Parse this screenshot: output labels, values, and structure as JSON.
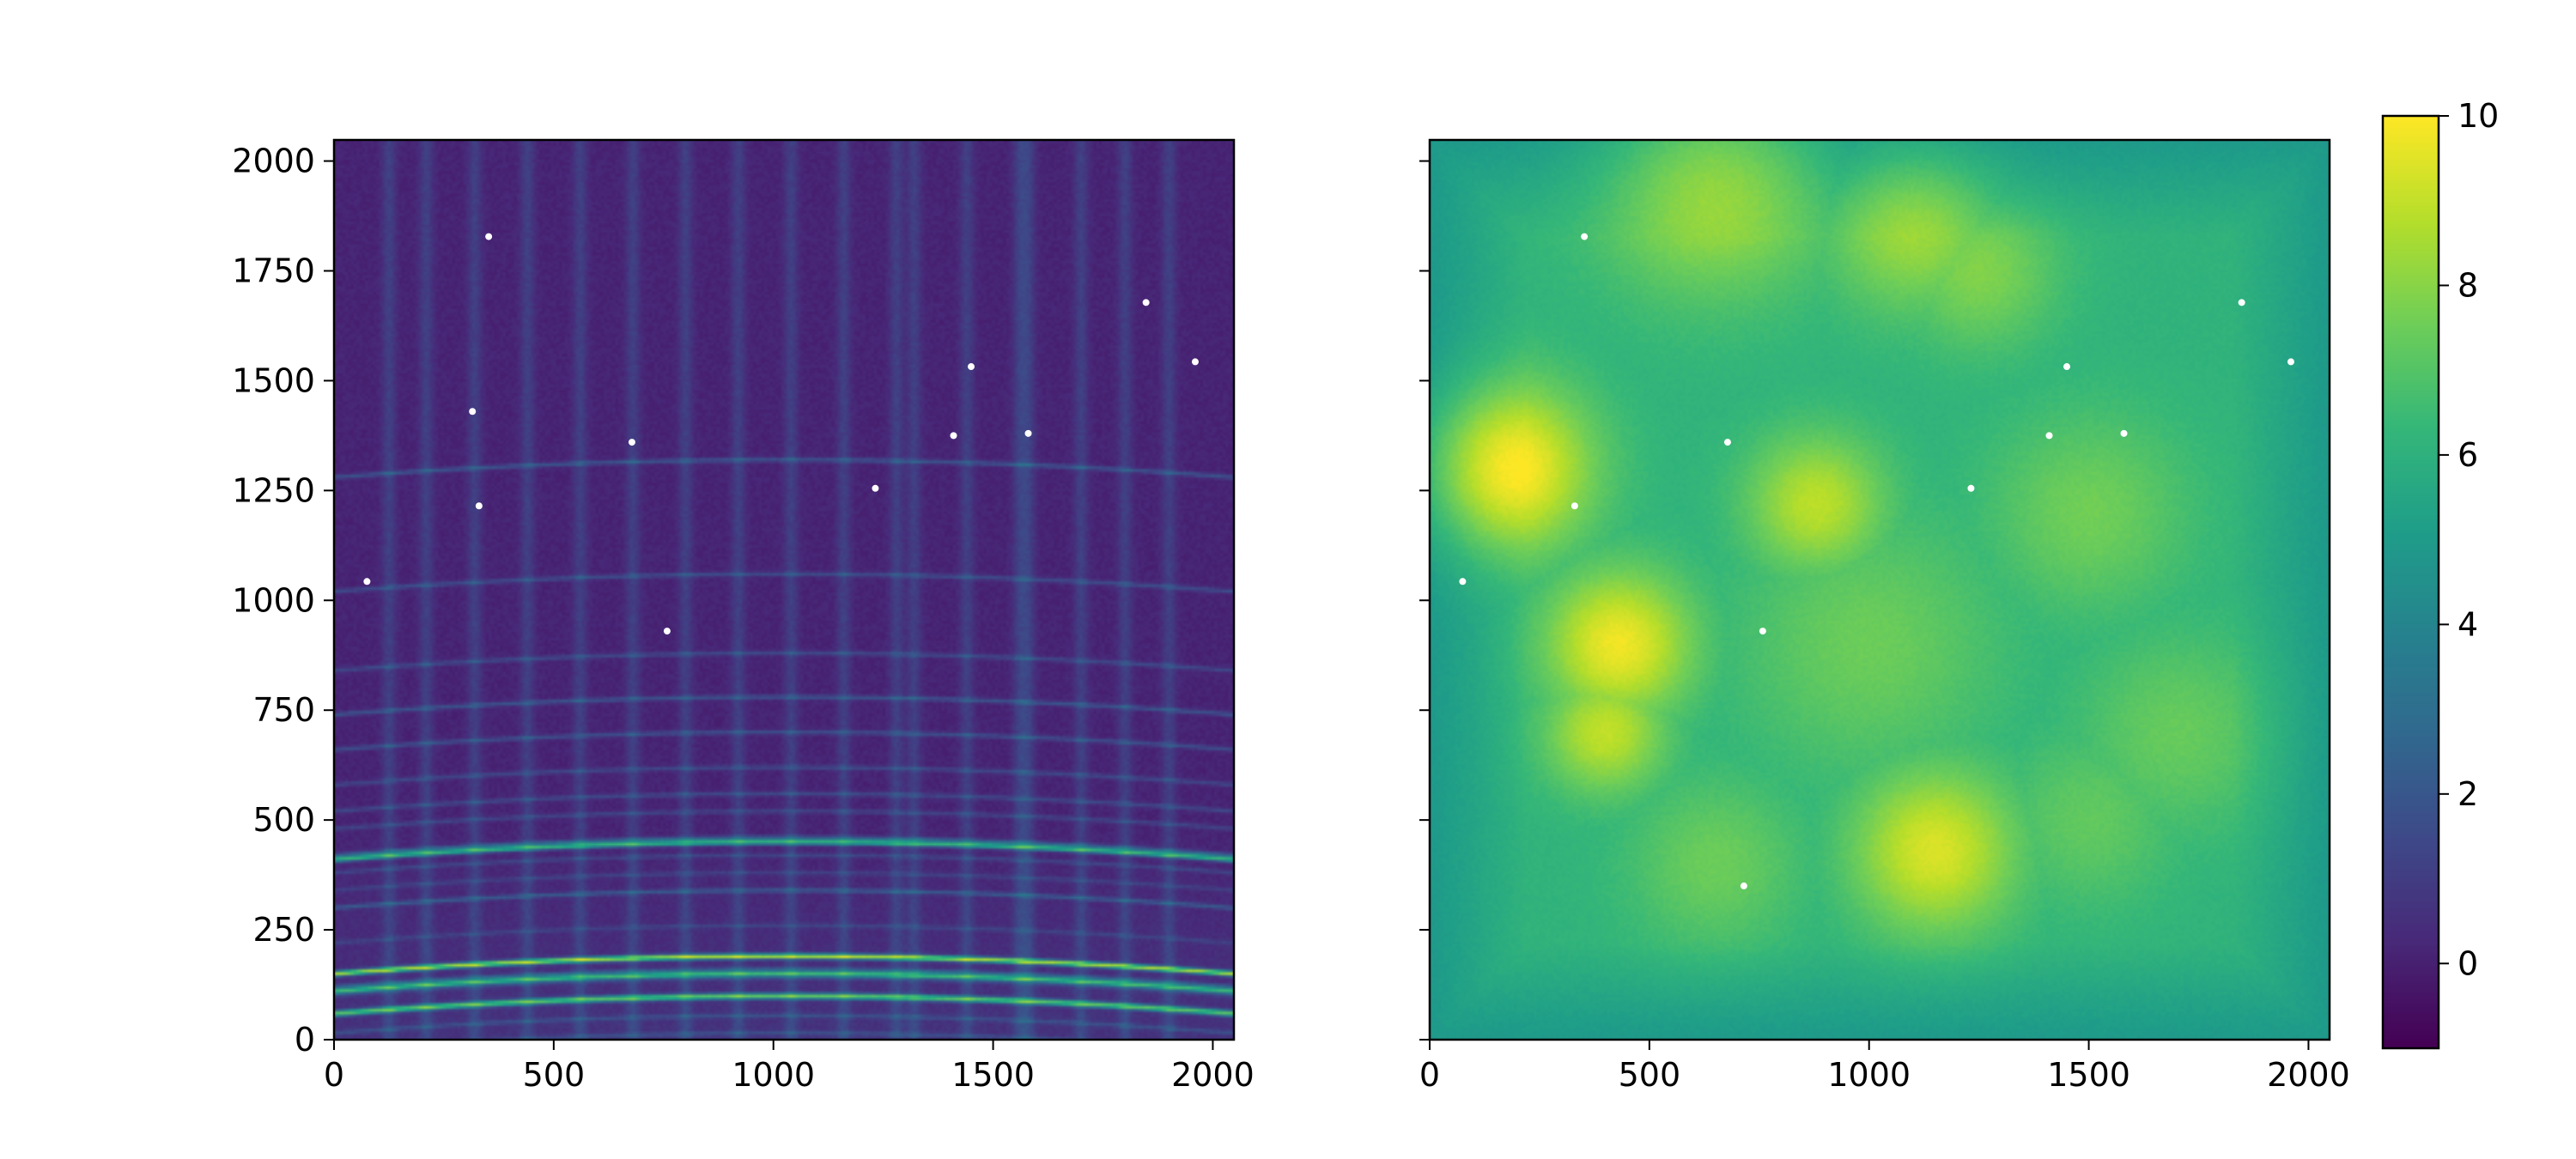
{
  "chart_data": [
    {
      "type": "heatmap",
      "title": "",
      "xlabel": "",
      "ylabel": "",
      "xlim": [
        0,
        2048
      ],
      "ylim": [
        0,
        2048
      ],
      "x_ticks": [
        "0",
        "500",
        "1000",
        "1500",
        "2000"
      ],
      "y_ticks": [
        "0",
        "250",
        "500",
        "750",
        "1000",
        "1250",
        "1500",
        "1750",
        "2000"
      ],
      "y_tick_labels_visible": true,
      "colormap": "viridis",
      "value_range": [
        -1,
        10
      ],
      "description_features": {
        "vertical_bands_x": [
          125,
          210,
          320,
          440,
          560,
          680,
          800,
          920,
          1040,
          1160,
          1280,
          1320,
          1440,
          1560,
          1580,
          1700,
          1800,
          1900
        ],
        "horizontal_lines_y": [
          15,
          55,
          95,
          140,
          160,
          190,
          260,
          340,
          380,
          420,
          460,
          520,
          560,
          620,
          700,
          780,
          880,
          1060,
          1320
        ],
        "bright_lines_y": [
          100,
          150,
          190,
          450
        ]
      },
      "hot_pixels": [
        {
          "x": 352,
          "y": 1828
        },
        {
          "x": 1848,
          "y": 1678
        },
        {
          "x": 1960,
          "y": 1543
        },
        {
          "x": 1450,
          "y": 1532
        },
        {
          "x": 678,
          "y": 1360
        },
        {
          "x": 1410,
          "y": 1375
        },
        {
          "x": 330,
          "y": 1215
        },
        {
          "x": 1232,
          "y": 1255
        },
        {
          "x": 75,
          "y": 1043
        },
        {
          "x": 758,
          "y": 930
        },
        {
          "x": 315,
          "y": 1430
        },
        {
          "x": 1580,
          "y": 1380
        }
      ]
    },
    {
      "type": "heatmap",
      "title": "",
      "xlabel": "",
      "ylabel": "",
      "xlim": [
        0,
        2048
      ],
      "ylim": [
        0,
        2048
      ],
      "x_ticks": [
        "0",
        "500",
        "1000",
        "1500",
        "2000"
      ],
      "y_ticks": [
        "0",
        "250",
        "500",
        "750",
        "1000",
        "1250",
        "1500",
        "1750",
        "2000"
      ],
      "y_tick_labels_visible": false,
      "colormap": "viridis",
      "value_range": [
        -1,
        10
      ],
      "blobs": [
        {
          "x": 180,
          "y": 1300,
          "r": 190,
          "v": 10.2
        },
        {
          "x": 430,
          "y": 900,
          "r": 170,
          "v": 9.8
        },
        {
          "x": 400,
          "y": 700,
          "r": 140,
          "v": 9.0
        },
        {
          "x": 1150,
          "y": 430,
          "r": 190,
          "v": 9.4
        },
        {
          "x": 880,
          "y": 1220,
          "r": 160,
          "v": 8.9
        },
        {
          "x": 650,
          "y": 1960,
          "r": 260,
          "v": 8.8
        },
        {
          "x": 1100,
          "y": 1850,
          "r": 200,
          "v": 8.4
        },
        {
          "x": 1250,
          "y": 1750,
          "r": 180,
          "v": 7.9
        },
        {
          "x": 1500,
          "y": 1200,
          "r": 230,
          "v": 7.6
        },
        {
          "x": 1000,
          "y": 900,
          "r": 300,
          "v": 7.5
        },
        {
          "x": 1700,
          "y": 700,
          "r": 230,
          "v": 7.4
        },
        {
          "x": 650,
          "y": 400,
          "r": 200,
          "v": 7.5
        },
        {
          "x": 1500,
          "y": 500,
          "r": 200,
          "v": 7.3
        }
      ],
      "background_value": 6.1,
      "hot_pixels": [
        {
          "x": 352,
          "y": 1828
        },
        {
          "x": 1848,
          "y": 1678
        },
        {
          "x": 1960,
          "y": 1543
        },
        {
          "x": 1450,
          "y": 1532
        },
        {
          "x": 678,
          "y": 1360
        },
        {
          "x": 1410,
          "y": 1375
        },
        {
          "x": 330,
          "y": 1215
        },
        {
          "x": 1232,
          "y": 1255
        },
        {
          "x": 75,
          "y": 1043
        },
        {
          "x": 758,
          "y": 930
        },
        {
          "x": 715,
          "y": 350
        },
        {
          "x": 1580,
          "y": 1380
        }
      ]
    }
  ],
  "colorbar": {
    "ticks": [
      "0",
      "2",
      "4",
      "6",
      "8",
      "10"
    ],
    "tick_values": [
      0,
      2,
      4,
      6,
      8,
      10
    ],
    "vmin": -1,
    "vmax": 10,
    "colormap": "viridis"
  },
  "colors": {
    "viridis_stops": [
      "#440154",
      "#482878",
      "#3e4989",
      "#31688e",
      "#26828e",
      "#1f9e89",
      "#35b779",
      "#6ece58",
      "#b5de2b",
      "#fde725"
    ],
    "hot_pixel": "#ffffff",
    "axes": "#000000"
  }
}
